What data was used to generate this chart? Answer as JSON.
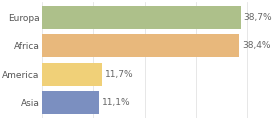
{
  "categories": [
    "Europa",
    "Africa",
    "America",
    "Asia"
  ],
  "values": [
    38.7,
    38.4,
    11.7,
    11.1
  ],
  "labels": [
    "38,7%",
    "38,4%",
    "11,7%",
    "11,1%"
  ],
  "bar_colors": [
    "#adc08a",
    "#e8b87c",
    "#f0d078",
    "#7b8fc0"
  ],
  "background_color": "#ffffff",
  "xlim": [
    0,
    46
  ],
  "label_fontsize": 6.5,
  "tick_fontsize": 6.5,
  "bar_height": 0.82
}
